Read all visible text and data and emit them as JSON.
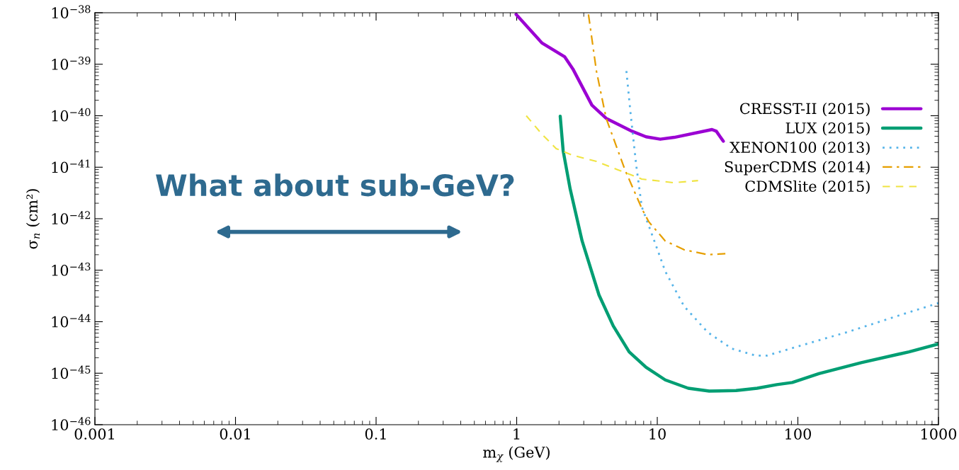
{
  "chart_data": {
    "type": "line",
    "xlabel": "m$_{χ}$ (GeV)",
    "ylabel": "σ$_{n}$ (cm²)",
    "log": "xy",
    "xlim": [
      0.001,
      1000
    ],
    "ylim": [
      1e-46,
      1e-38
    ],
    "xticks": [
      0.001,
      0.01,
      0.1,
      1,
      10,
      100,
      1000
    ],
    "yticks": [
      {
        "value": 1e-46,
        "label": "10$^{−46}$"
      },
      {
        "value": 1e-45,
        "label": "10$^{−45}$"
      },
      {
        "value": 1e-44,
        "label": "10$^{−44}$"
      },
      {
        "value": 1e-43,
        "label": "10$^{−43}$"
      },
      {
        "value": 1e-42,
        "label": "10$^{−42}$"
      },
      {
        "value": 1e-41,
        "label": "10$^{−41}$"
      },
      {
        "value": 1e-40,
        "label": "10$^{−40}$"
      },
      {
        "value": 1e-39,
        "label": "10$^{−39}$"
      },
      {
        "value": 1e-38,
        "label": "10$^{−38}$"
      }
    ],
    "legend": "right",
    "grid": false,
    "annotations": [
      "What about sub-GeV?"
    ],
    "series": [
      {
        "name": "CRESST-II (2015)",
        "color": "#9b00d3",
        "line_style": "solid",
        "x": [
          0.99,
          1.25,
          1.51,
          2.19,
          2.51,
          3.43,
          4.33,
          6.61,
          8.32,
          10.5,
          13.2,
          24.5,
          26.3,
          29.5
        ],
        "values": [
          9.3e-39,
          4.6e-39,
          2.6e-39,
          1.4e-39,
          8.1e-40,
          1.6e-40,
          8.9e-41,
          5e-41,
          3.9e-41,
          3.5e-41,
          3.8e-41,
          5.4e-41,
          5e-41,
          3.2e-41
        ]
      },
      {
        "name": "LUX (2015)",
        "color": "#009e73",
        "line_style": "solid",
        "x": [
          2.04,
          2.14,
          2.4,
          2.92,
          3.85,
          4.86,
          6.31,
          8.32,
          11.4,
          16.6,
          23.4,
          36.3,
          51.3,
          70.8,
          91.2,
          141,
          282,
          617,
          1000
        ],
        "values": [
          9.8e-41,
          2.1e-41,
          3.8e-42,
          3.7e-43,
          3.3e-44,
          8.3e-45,
          2.6e-45,
          1.3e-45,
          7.4e-46,
          5.1e-46,
          4.5e-46,
          4.6e-46,
          5.1e-46,
          6e-46,
          6.6e-46,
          9.8e-46,
          1.6e-45,
          2.6e-45,
          3.7e-45
        ]
      },
      {
        "name": "XENON100 (2013)",
        "color": "#56b4e9",
        "line_style": "dotted",
        "x": [
          6.03,
          6.46,
          7.08,
          7.76,
          9.02,
          11.4,
          15.5,
          22.9,
          33.9,
          50.1,
          60.3,
          107,
          234,
          513,
          1000
        ],
        "values": [
          7.4e-40,
          1.1e-40,
          1.1e-41,
          1.7e-42,
          5.6e-43,
          9.5e-44,
          2e-44,
          6.2e-45,
          3e-45,
          2.2e-45,
          2.2e-45,
          3.5e-45,
          6.5e-45,
          1.3e-44,
          2.3e-44
        ]
      },
      {
        "name": "SuperCDMS (2014)",
        "color": "#e69f00",
        "line_style": "dashdot",
        "x": [
          3.24,
          3.69,
          4.33,
          5.89,
          7.83,
          8.71,
          11.4,
          15.5,
          22.9,
          30.5
        ],
        "values": [
          9.3e-39,
          7.4e-40,
          8.9e-41,
          8.9e-42,
          1.5e-42,
          8.7e-43,
          3.7e-43,
          2.5e-43,
          2e-43,
          2.1e-43
        ]
      },
      {
        "name": "CDMSlite (2015)",
        "color": "#f0e442",
        "line_style": "dashed",
        "x": [
          1.17,
          1.51,
          1.91,
          2.51,
          3.69,
          5.25,
          7.76,
          13.2,
          19.5
        ],
        "values": [
          1e-40,
          4.4e-41,
          2.3e-41,
          1.7e-41,
          1.3e-41,
          8.9e-42,
          5.9e-42,
          5e-42,
          5.5e-42
        ]
      }
    ]
  }
}
